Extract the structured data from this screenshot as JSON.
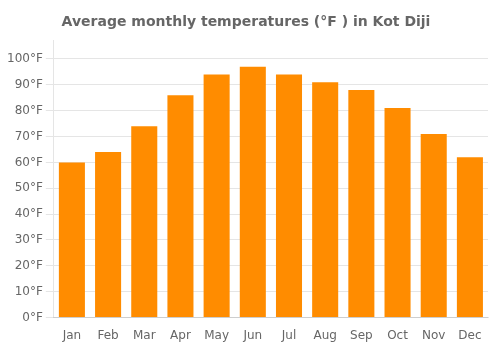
{
  "chart_data": {
    "type": "bar",
    "title": "Average monthly temperatures (°F ) in Kot Diji",
    "categories": [
      "Jan",
      "Feb",
      "Mar",
      "Apr",
      "May",
      "Jun",
      "Jul",
      "Aug",
      "Sep",
      "Oct",
      "Nov",
      "Dec"
    ],
    "values": [
      60,
      64,
      74,
      86,
      94,
      97,
      94,
      91,
      88,
      81,
      71,
      62
    ],
    "color": "#FF8C00",
    "ylim": [
      0,
      107
    ],
    "yticks": [
      {
        "value": 0,
        "label": "0°F"
      },
      {
        "value": 10,
        "label": "10°F"
      },
      {
        "value": 20,
        "label": "20°F"
      },
      {
        "value": 30,
        "label": "30°F"
      },
      {
        "value": 40,
        "label": "40°F"
      },
      {
        "value": 50,
        "label": "50°F"
      },
      {
        "value": 60,
        "label": "60°F"
      },
      {
        "value": 70,
        "label": "70°F"
      },
      {
        "value": 80,
        "label": "80°F"
      },
      {
        "value": 90,
        "label": "90°F"
      },
      {
        "value": 100,
        "label": "100°F"
      }
    ],
    "grid": true
  }
}
